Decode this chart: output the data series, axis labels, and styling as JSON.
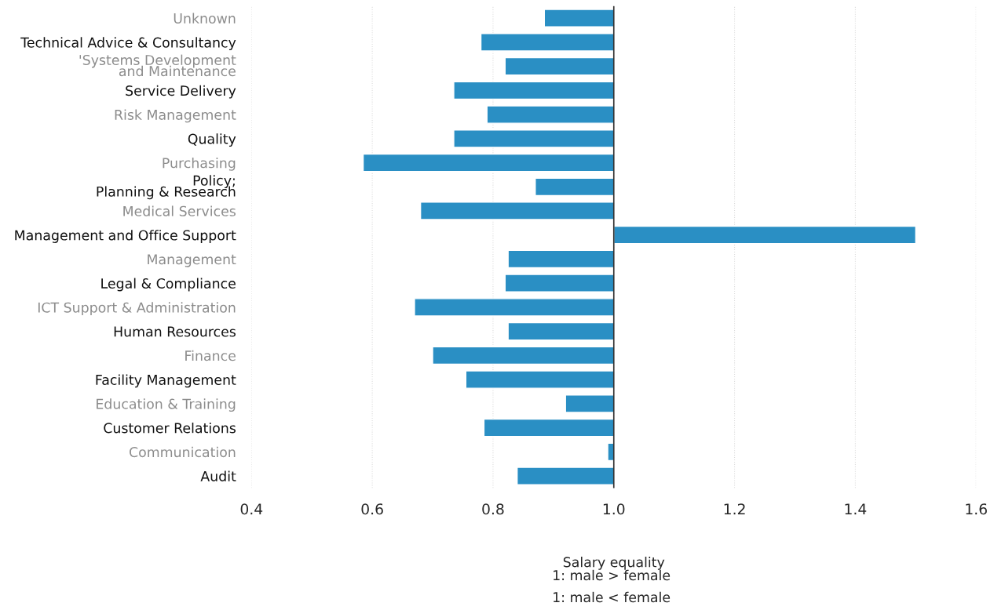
{
  "chart_data": {
    "type": "bar",
    "orientation": "horizontal",
    "categories": [
      "Unknown",
      "Technical Advice & Consultancy",
      "'Systems Development\nand Maintenance",
      "Service Delivery",
      "Risk Management",
      "Quality",
      "Purchasing",
      "Policy;\nPlanning & Research",
      "Medical Services",
      "Management and Office Support",
      "Management",
      "Legal & Compliance",
      "ICT Support & Administration",
      "Human Resources",
      "Finance",
      "Facility Management",
      "Education & Training",
      "Customer Relations",
      "Communication",
      "Audit"
    ],
    "base": [
      1,
      1,
      1,
      1,
      1,
      1,
      1,
      1,
      1,
      1,
      1,
      1,
      1,
      1,
      1,
      1,
      1,
      1,
      1,
      1
    ],
    "values": [
      -0.115,
      -0.22,
      -0.18,
      -0.265,
      -0.21,
      -0.265,
      -0.415,
      -0.13,
      -0.32,
      0.5,
      -0.175,
      -0.18,
      -0.33,
      -0.175,
      -0.3,
      -0.245,
      -0.08,
      -0.215,
      -0.01,
      -0.16
    ],
    "color": "#2a8fc4",
    "xlim": [
      0.4,
      1.6
    ],
    "xticks": [
      0.4,
      0.6,
      0.8,
      {
        "value": 1.0,
        "label": "1.0"
      },
      1.2,
      1.4,
      1.6
    ],
    "grid": "x",
    "ref_lines": [
      {
        "axis": "x",
        "value": 1,
        "color": "#333333"
      }
    ],
    "xlabel": "Salary equality",
    "annotations": [
      "1: male > female",
      "1: male < female"
    ]
  }
}
